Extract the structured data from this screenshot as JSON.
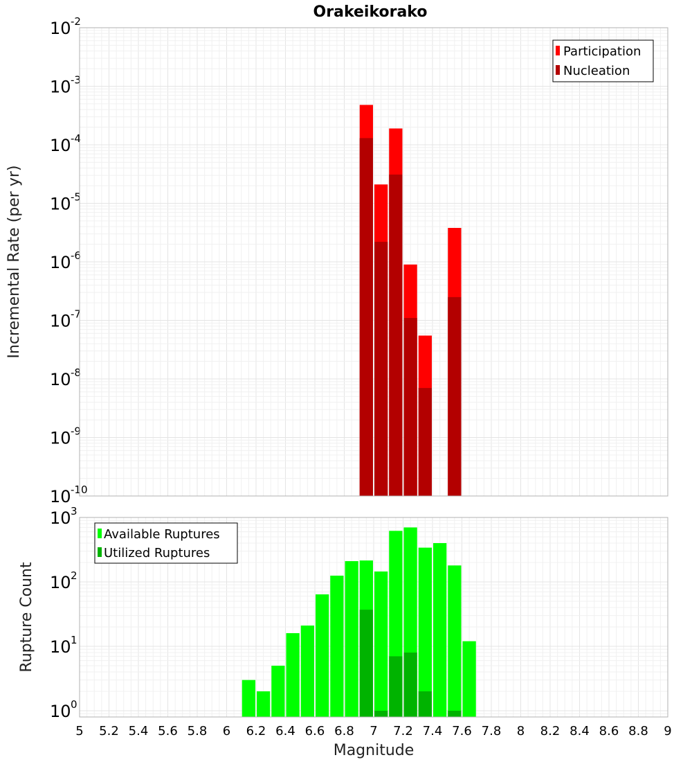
{
  "chart_data": [
    {
      "type": "bar",
      "title": "Orakeikorako",
      "xlabel": "",
      "ylabel": "Incremental Rate (per yr)",
      "yscale": "log",
      "ylim": [
        1e-10,
        0.01
      ],
      "xlim": [
        5,
        9
      ],
      "legend_position": "top-right",
      "x": [
        6.95,
        7.05,
        7.15,
        7.25,
        7.35,
        7.55
      ],
      "series": [
        {
          "name": "Participation",
          "color": "#ff0000",
          "values": [
            0.00048,
            2.1e-05,
            0.00019,
            9e-07,
            5.5e-08,
            3.8e-06
          ]
        },
        {
          "name": "Nucleation",
          "color": "#b30000",
          "values": [
            0.00013,
            2.2e-06,
            3.1e-05,
            1.1e-07,
            7e-09,
            2.5e-07
          ]
        }
      ],
      "y_tick_exponents": [
        -10,
        -9,
        -8,
        -7,
        -6,
        -5,
        -4,
        -3,
        -2
      ]
    },
    {
      "type": "bar",
      "title": "",
      "xlabel": "Magnitude",
      "ylabel": "Rupture Count",
      "yscale": "log",
      "ylim": [
        0.8,
        1000
      ],
      "xlim": [
        5,
        9
      ],
      "legend_position": "top-left",
      "x": [
        6.15,
        6.25,
        6.35,
        6.45,
        6.55,
        6.65,
        6.75,
        6.85,
        6.95,
        7.05,
        7.15,
        7.25,
        7.35,
        7.45,
        7.55,
        7.65
      ],
      "series": [
        {
          "name": "Available Ruptures",
          "color": "#00ff00",
          "values": [
            3,
            2,
            5,
            16,
            21,
            64,
            125,
            210,
            215,
            145,
            620,
            700,
            340,
            400,
            180,
            12
          ]
        },
        {
          "name": "Utilized Ruptures",
          "color": "#00b300",
          "values": [
            0,
            0,
            0,
            0,
            0,
            0,
            0,
            0,
            37,
            1,
            7,
            8,
            2,
            0,
            1,
            0
          ]
        }
      ],
      "y_tick_exponents": [
        0,
        1,
        2,
        3
      ],
      "x_tick_labels": [
        "5",
        "5.2",
        "5.4",
        "5.6",
        "5.8",
        "6",
        "6.2",
        "6.4",
        "6.6",
        "6.8",
        "7",
        "7.2",
        "7.4",
        "7.6",
        "7.8",
        "8",
        "8.2",
        "8.4",
        "8.6",
        "8.8",
        "9"
      ]
    }
  ]
}
